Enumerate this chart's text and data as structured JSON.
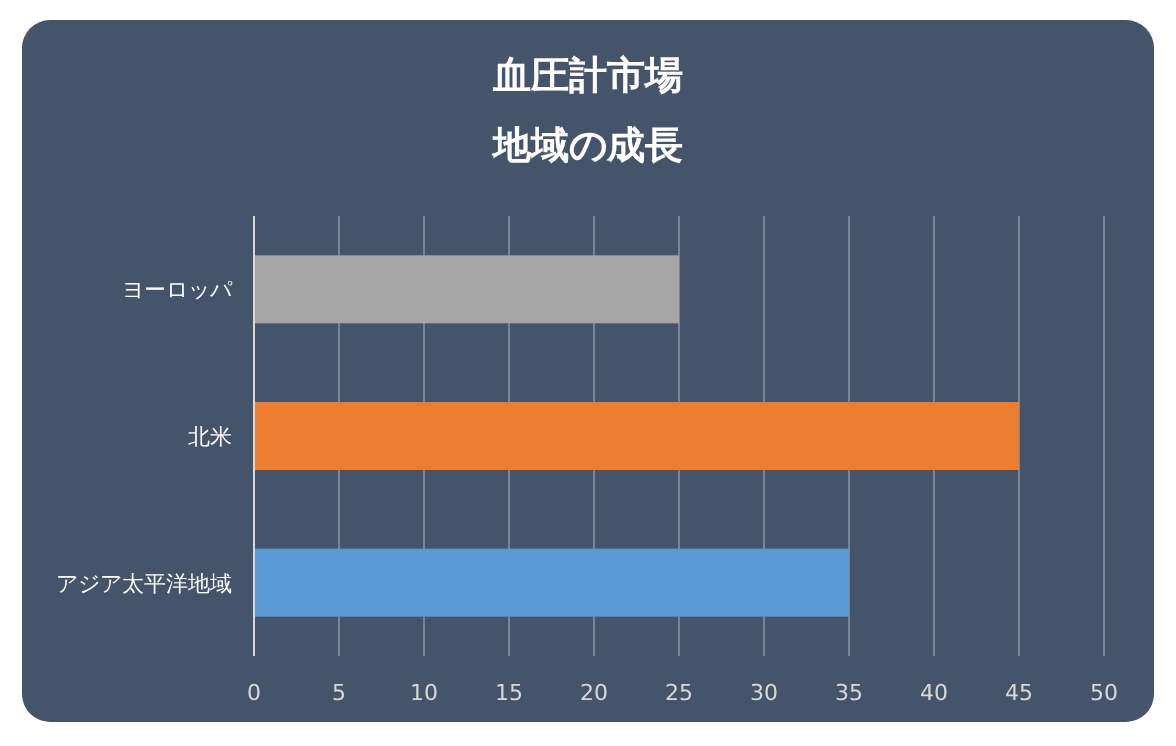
{
  "chart_data": {
    "type": "bar",
    "orientation": "horizontal",
    "title": "血圧計市場",
    "subtitle": "地域の成長",
    "categories": [
      "ヨーロッパ",
      "北米",
      "アジア太平洋地域"
    ],
    "values": [
      25,
      45,
      35
    ],
    "colors": [
      "#a5a5a5",
      "#ed7d31",
      "#5b9bd5"
    ],
    "xlim": [
      0,
      50
    ],
    "xticks": [
      0,
      5,
      10,
      15,
      20,
      25,
      30,
      35,
      40,
      45,
      50
    ],
    "grid": "x"
  }
}
